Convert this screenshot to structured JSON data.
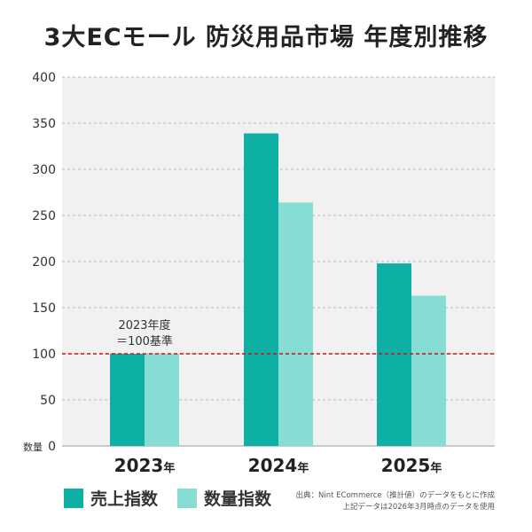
{
  "title": "3大ECモール 防災用品市場 年度別推移",
  "colors": {
    "sales": "#0eb0a6",
    "quantity": "#86ddd4",
    "baseline": "#c0151b",
    "plot_bg": "#f1f1f1",
    "grid": "#b8b8b8"
  },
  "legend": [
    {
      "name": "売上指数",
      "color": "#0eb0a6"
    },
    {
      "name": "数量指数",
      "color": "#86ddd4"
    }
  ],
  "source": {
    "line1": "出典：Nint ECommerce（推計値）のデータをもとに作成",
    "line2": "上記データは2026年3月時点のデータを使用"
  },
  "chart_data": {
    "type": "bar",
    "categories": [
      {
        "year": "2023",
        "suffix": "年"
      },
      {
        "year": "2024",
        "suffix": "年"
      },
      {
        "year": "2025",
        "suffix": "年"
      }
    ],
    "series": [
      {
        "name": "売上指数",
        "values": [
          100,
          339,
          198
        ]
      },
      {
        "name": "数量指数",
        "values": [
          100,
          264,
          163
        ]
      }
    ],
    "ylabel": "数量",
    "ylim": [
      0,
      400
    ],
    "yticks": [
      0,
      50,
      100,
      150,
      200,
      250,
      300,
      350,
      400
    ],
    "grid": true,
    "reference_line": {
      "value": 100,
      "style": "dashed"
    },
    "annotation": {
      "line1": "2023年度",
      "line2": "＝100基準"
    }
  }
}
